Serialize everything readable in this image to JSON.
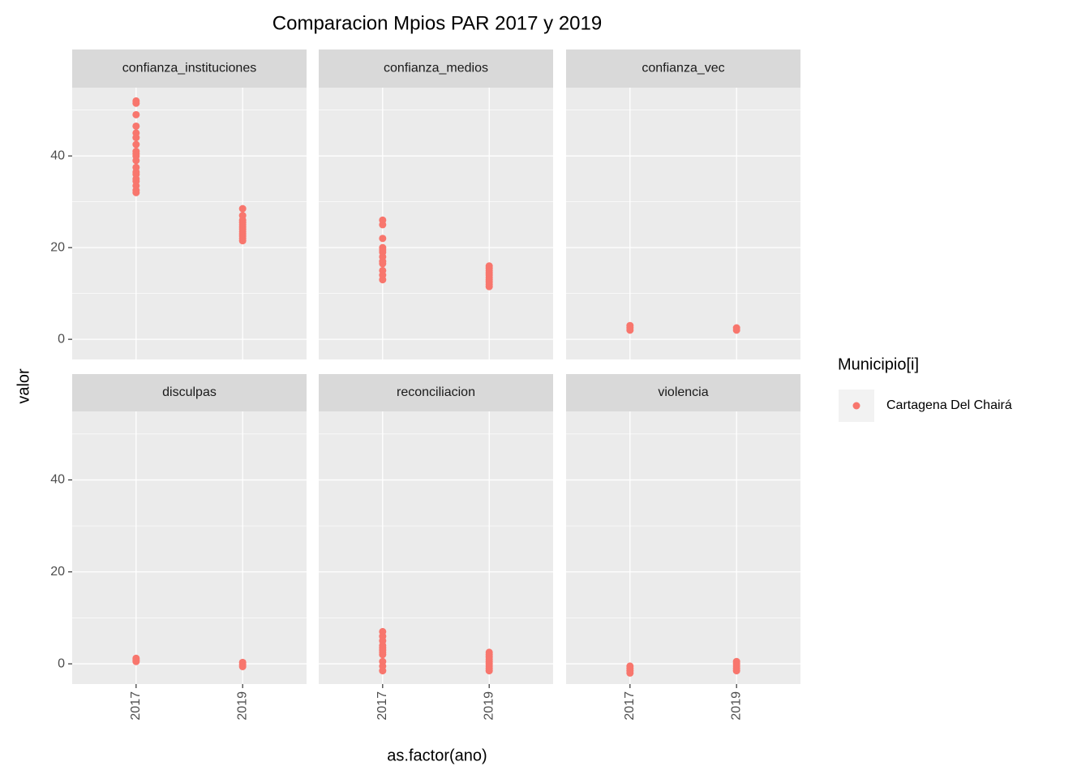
{
  "chart_data": {
    "type": "scatter",
    "title": "Comparacion Mpios PAR 2017 y 2019",
    "x_label": "as.factor(ano)",
    "y_label": "valor",
    "legend_title": "Municipio[i]",
    "series_name": "Cartagena Del Chairá",
    "color": "#F8766D",
    "categories": [
      "2017",
      "2019"
    ],
    "ylim": [
      -4.4,
      54.9
    ],
    "yticks": [
      0,
      20,
      40
    ],
    "grid": true,
    "facets": [
      {
        "title": "confianza_instituciones",
        "values": [
          [
            52,
            51.5,
            49,
            46.5,
            45,
            44,
            42.5,
            41,
            40.5,
            40,
            39,
            37.5,
            36.5,
            36,
            35,
            34.5,
            33.5,
            32.5,
            32
          ],
          [
            28.5,
            27,
            26,
            25.5,
            25,
            24.5,
            24,
            23.5,
            23,
            22.5,
            22,
            21.5
          ]
        ]
      },
      {
        "title": "confianza_medios",
        "values": [
          [
            26,
            25,
            22,
            20,
            19.5,
            19,
            18,
            17,
            16.5,
            15,
            14,
            13
          ],
          [
            16,
            15.5,
            15,
            14.5,
            14,
            13.5,
            13,
            12.5,
            12,
            11.5
          ]
        ]
      },
      {
        "title": "confianza_vec",
        "values": [
          [
            3,
            2.5,
            2
          ],
          [
            2.5,
            2
          ]
        ]
      },
      {
        "title": "disculpas",
        "values": [
          [
            1.2,
            0.8,
            0.5
          ],
          [
            0.3,
            -0.2,
            -0.6
          ]
        ]
      },
      {
        "title": "reconciliacion",
        "values": [
          [
            7,
            6,
            5,
            4,
            3.5,
            3,
            2.5,
            2,
            0.5,
            -0.5,
            -1.5
          ],
          [
            2.5,
            2,
            1.5,
            1,
            0.5,
            0,
            -0.5,
            -1,
            -1.5
          ]
        ]
      },
      {
        "title": "violencia",
        "values": [
          [
            -0.5,
            -1,
            -1.5,
            -2
          ],
          [
            0.5,
            0,
            -0.5,
            -1,
            -1.5
          ]
        ]
      }
    ]
  }
}
